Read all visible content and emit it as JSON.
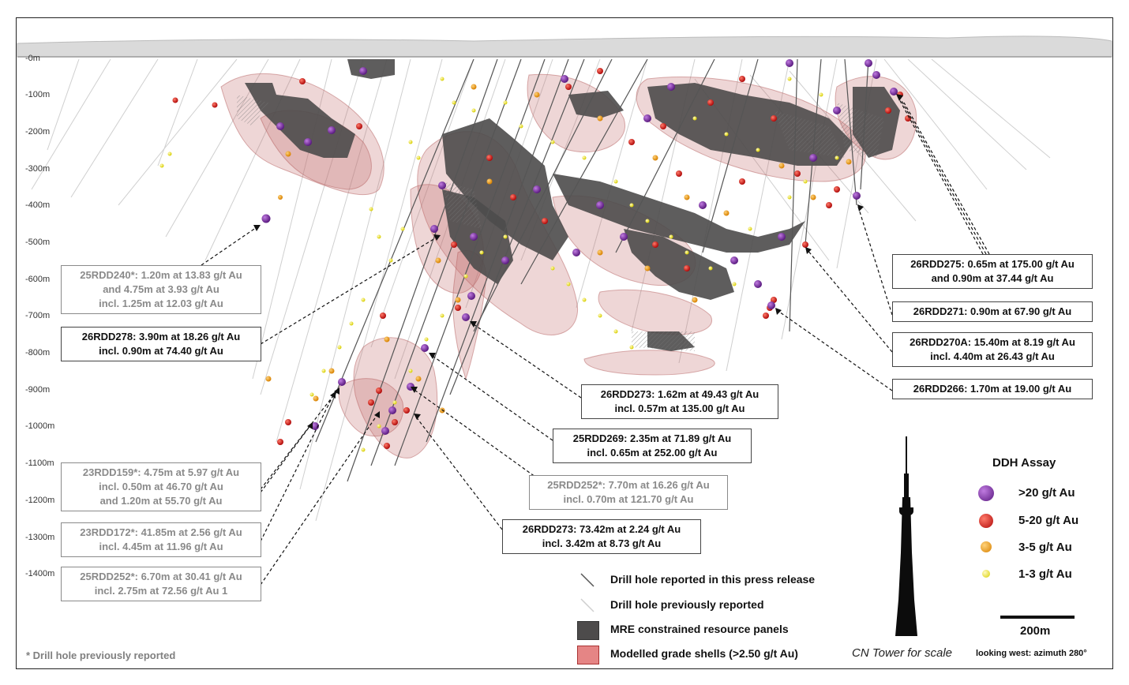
{
  "depth_labels": [
    "-0m",
    "-100m",
    "-200m",
    "-300m",
    "-400m",
    "-500m",
    "-600m",
    "-700m",
    "-800m",
    "-900m",
    "-1000m",
    "-1100m",
    "-1200m",
    "-1300m",
    "-1400m"
  ],
  "callouts": [
    {
      "id": "c240",
      "lines": [
        "25RDD240*: 1.20m at 13.83 g/t Au",
        "and 4.75m at 3.93 g/t Au",
        "incl. 1.25m at 12.03 g/t Au"
      ],
      "style": "previous"
    },
    {
      "id": "c278",
      "lines": [
        "26RDD278: 3.90m at 18.26 g/t Au",
        "incl. 0.90m at 74.40 g/t Au"
      ],
      "style": "current"
    },
    {
      "id": "c159",
      "lines": [
        "23RDD159*: 4.75m at 5.97 g/t Au",
        "incl. 0.50m at 46.70 g/t Au",
        "and 1.20m at 55.70 g/t Au"
      ],
      "style": "previous"
    },
    {
      "id": "c172",
      "lines": [
        "23RDD172*: 41.85m at 2.56 g/t Au",
        "incl. 4.45m at 11.96 g/t Au"
      ],
      "style": "previous"
    },
    {
      "id": "c252a",
      "lines": [
        "25RDD252*: 6.70m at 30.41 g/t Au",
        "incl. 2.75m at 72.56 g/t Au 1"
      ],
      "style": "previous"
    },
    {
      "id": "c273a",
      "lines": [
        "26RDD273: 1.62m at 49.43 g/t Au",
        "incl. 0.57m at 135.00 g/t Au"
      ],
      "style": "current"
    },
    {
      "id": "c269",
      "lines": [
        "25RDD269: 2.35m at 71.89 g/t Au",
        "incl. 0.65m at 252.00 g/t Au"
      ],
      "style": "current"
    },
    {
      "id": "c252b",
      "lines": [
        "25RDD252*: 7.70m at 16.26 g/t Au",
        "incl. 0.70m at 121.70 g/t Au"
      ],
      "style": "previous"
    },
    {
      "id": "c273b",
      "lines": [
        "26RDD273: 73.42m at 2.24 g/t Au",
        "incl. 3.42m at 8.73 g/t Au"
      ],
      "style": "current"
    },
    {
      "id": "c275",
      "lines": [
        "26RDD275: 0.65m at 175.00 g/t Au",
        "and 0.90m at 37.44 g/t Au"
      ],
      "style": "current"
    },
    {
      "id": "c271",
      "lines": [
        "26RDD271: 0.90m at 67.90 g/t Au"
      ],
      "style": "current"
    },
    {
      "id": "c270a",
      "lines": [
        "26RDD270A: 15.40m at 8.19 g/t Au",
        "incl. 4.40m at 26.43 g/t Au"
      ],
      "style": "current"
    },
    {
      "id": "c266",
      "lines": [
        "26RDD266: 1.70m at 19.00 g/t Au"
      ],
      "style": "current"
    }
  ],
  "legend": {
    "reported_label": "Drill hole reported in this press release",
    "previous_label": "Drill hole previously reported",
    "panels_label": "MRE constrained resource panels",
    "shells_label": "Modelled grade shells (>2.50 g/t Au)",
    "panels_color": "#4d4b4b",
    "shells_color": "#e58585"
  },
  "assay_legend": {
    "title": "DDH Assay",
    "items": [
      {
        "label": ">20 g/t Au",
        "color": "#7b2ca0",
        "icon": "purple-sphere-icon"
      },
      {
        "label": "5-20 g/t Au",
        "color": "#e41d1d",
        "icon": "red-sphere-icon"
      },
      {
        "label": "3-5 g/t Au",
        "color": "#f0a20c",
        "icon": "orange-sphere-icon"
      },
      {
        "label": "1-3 g/t Au",
        "color": "#f4ec10",
        "icon": "yellow-sphere-icon"
      }
    ]
  },
  "scale_label": "200m",
  "tower_caption": "CN Tower for scale",
  "direction_note": "looking west: azimuth 280°",
  "footnote": "* Drill hole previously reported"
}
